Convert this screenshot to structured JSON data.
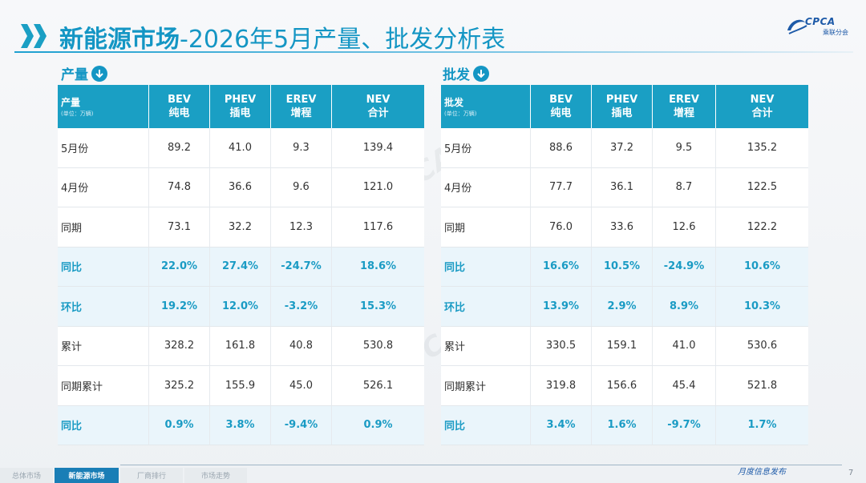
{
  "title": {
    "main": "新能源市场",
    "rest": "-2026年5月产量、批发分析表"
  },
  "logo": {
    "brand": "CPCA",
    "sub": "乘联分会"
  },
  "colors": {
    "accent": "#1496c4",
    "header_bg": "#1a9fc4",
    "highlight_text": "#1a9bc4",
    "highlight_bg": "#eaf5fb"
  },
  "production": {
    "section_label": "产量",
    "header": {
      "corner": "产量",
      "unit": "(单位：万辆)",
      "columns": [
        {
          "code": "BEV",
          "name": "纯电"
        },
        {
          "code": "PHEV",
          "name": "插电"
        },
        {
          "code": "EREV",
          "name": "增程"
        },
        {
          "code": "NEV",
          "name": "合计"
        }
      ]
    },
    "rows": [
      {
        "label": "5月份",
        "values": [
          "89.2",
          "41.0",
          "9.3",
          "139.4"
        ],
        "highlight": false
      },
      {
        "label": "4月份",
        "values": [
          "74.8",
          "36.6",
          "9.6",
          "121.0"
        ],
        "highlight": false
      },
      {
        "label": "同期",
        "values": [
          "73.1",
          "32.2",
          "12.3",
          "117.6"
        ],
        "highlight": false
      },
      {
        "label": "同比",
        "values": [
          "22.0%",
          "27.4%",
          "-24.7%",
          "18.6%"
        ],
        "highlight": true
      },
      {
        "label": "环比",
        "values": [
          "19.2%",
          "12.0%",
          "-3.2%",
          "15.3%"
        ],
        "highlight": true
      },
      {
        "label": "累计",
        "values": [
          "328.2",
          "161.8",
          "40.8",
          "530.8"
        ],
        "highlight": false
      },
      {
        "label": "同期累计",
        "values": [
          "325.2",
          "155.9",
          "45.0",
          "526.1"
        ],
        "highlight": false
      },
      {
        "label": "同比",
        "values": [
          "0.9%",
          "3.8%",
          "-9.4%",
          "0.9%"
        ],
        "highlight": true
      }
    ]
  },
  "wholesale": {
    "section_label": "批发",
    "header": {
      "corner": "批发",
      "unit": "(单位：万辆)",
      "columns": [
        {
          "code": "BEV",
          "name": "纯电"
        },
        {
          "code": "PHEV",
          "name": "插电"
        },
        {
          "code": "EREV",
          "name": "增程"
        },
        {
          "code": "NEV",
          "name": "合计"
        }
      ]
    },
    "rows": [
      {
        "label": "5月份",
        "values": [
          "88.6",
          "37.2",
          "9.5",
          "135.2"
        ],
        "highlight": false
      },
      {
        "label": "4月份",
        "values": [
          "77.7",
          "36.1",
          "8.7",
          "122.5"
        ],
        "highlight": false
      },
      {
        "label": "同期",
        "values": [
          "76.0",
          "33.6",
          "12.6",
          "122.2"
        ],
        "highlight": false
      },
      {
        "label": "同比",
        "values": [
          "16.6%",
          "10.5%",
          "-24.9%",
          "10.6%"
        ],
        "highlight": true
      },
      {
        "label": "环比",
        "values": [
          "13.9%",
          "2.9%",
          "8.9%",
          "10.3%"
        ],
        "highlight": true
      },
      {
        "label": "累计",
        "values": [
          "330.5",
          "159.1",
          "41.0",
          "530.6"
        ],
        "highlight": false
      },
      {
        "label": "同期累计",
        "values": [
          "319.8",
          "156.6",
          "45.4",
          "521.8"
        ],
        "highlight": false
      },
      {
        "label": "同比",
        "values": [
          "3.4%",
          "1.6%",
          "-9.7%",
          "1.7%"
        ],
        "highlight": true
      }
    ]
  },
  "watermark": "CPCA",
  "footer": {
    "tabs": [
      "总体市场",
      "新能源市场",
      "厂商排行",
      "市场走势"
    ],
    "active_tab": 1,
    "tagline": "月度信息发布",
    "page_number": "7"
  }
}
